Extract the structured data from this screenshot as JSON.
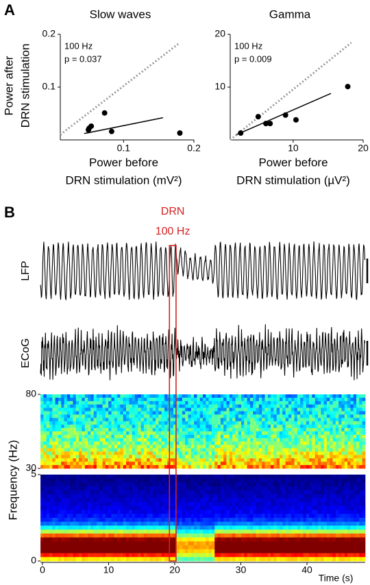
{
  "panel_labels": [
    "A",
    "B"
  ],
  "chart_data": [
    {
      "type": "scatter",
      "title": "Slow waves",
      "ylabel": [
        "Power after",
        "DRN stimulation"
      ],
      "xlabel": [
        "Power before",
        "DRN stimulation (mV²)"
      ],
      "annotations": [
        "100 Hz",
        "p = 0.037"
      ],
      "x": [
        0.05,
        0.054,
        0.051,
        0.073,
        0.083,
        0.18
      ],
      "values": [
        0.019,
        0.026,
        0.022,
        0.051,
        0.016,
        0.013
      ],
      "color": "#000000",
      "fit_line": {
        "x": [
          0.044,
          0.156
        ],
        "y": [
          0.012,
          0.042
        ]
      },
      "identity_line": {
        "x": [
          0.01,
          0.18
        ],
        "y": [
          0.01,
          0.184
        ]
      },
      "xlim": [
        0.01,
        0.2
      ],
      "xticks": [
        0.1,
        0.2
      ],
      "ylim": [
        0,
        0.2
      ],
      "yticks": [
        0.1,
        0.2
      ]
    },
    {
      "type": "scatter",
      "title": "Gamma",
      "xlabel": [
        "Power before",
        "DRN stimulation (µV²)"
      ],
      "annotations": [
        "100 Hz",
        "p = 0.009"
      ],
      "x": [
        2.5,
        5.0,
        6.1,
        6.7,
        8.9,
        10.4,
        17.8
      ],
      "values": [
        1.3,
        4.4,
        3.1,
        3.1,
        4.7,
        3.8,
        10.1
      ],
      "color": "#000000",
      "fit_line": {
        "x": [
          1.9,
          15.4
        ],
        "y": [
          1.0,
          8.8
        ]
      },
      "identity_line": {
        "x": [
          1,
          18.3
        ],
        "y": [
          0,
          18.4
        ]
      },
      "xlim": [
        1,
        20
      ],
      "xticks": [
        10,
        20
      ],
      "ylim": [
        0,
        20
      ],
      "yticks": [
        10,
        20
      ]
    },
    {
      "type": "traces",
      "stimulation": {
        "labels": [
          "DRN",
          "100 Hz"
        ],
        "start": 19.2,
        "end": 20.2,
        "color": "#d42020"
      },
      "trace_labels": [
        "LFP",
        "ECoG"
      ],
      "spectrograms": [
        {
          "ylim": [
            30,
            80
          ],
          "yticks": [
            30,
            80
          ]
        },
        {
          "ylim": [
            0,
            5
          ],
          "yticks": [
            0,
            5
          ]
        }
      ],
      "spectrogram_ylabel": "Frequency (Hz)",
      "xlabel": "Time (s)",
      "xlim": [
        -0.3,
        48.8
      ],
      "xticks": [
        0,
        10,
        20,
        30,
        40
      ]
    }
  ]
}
